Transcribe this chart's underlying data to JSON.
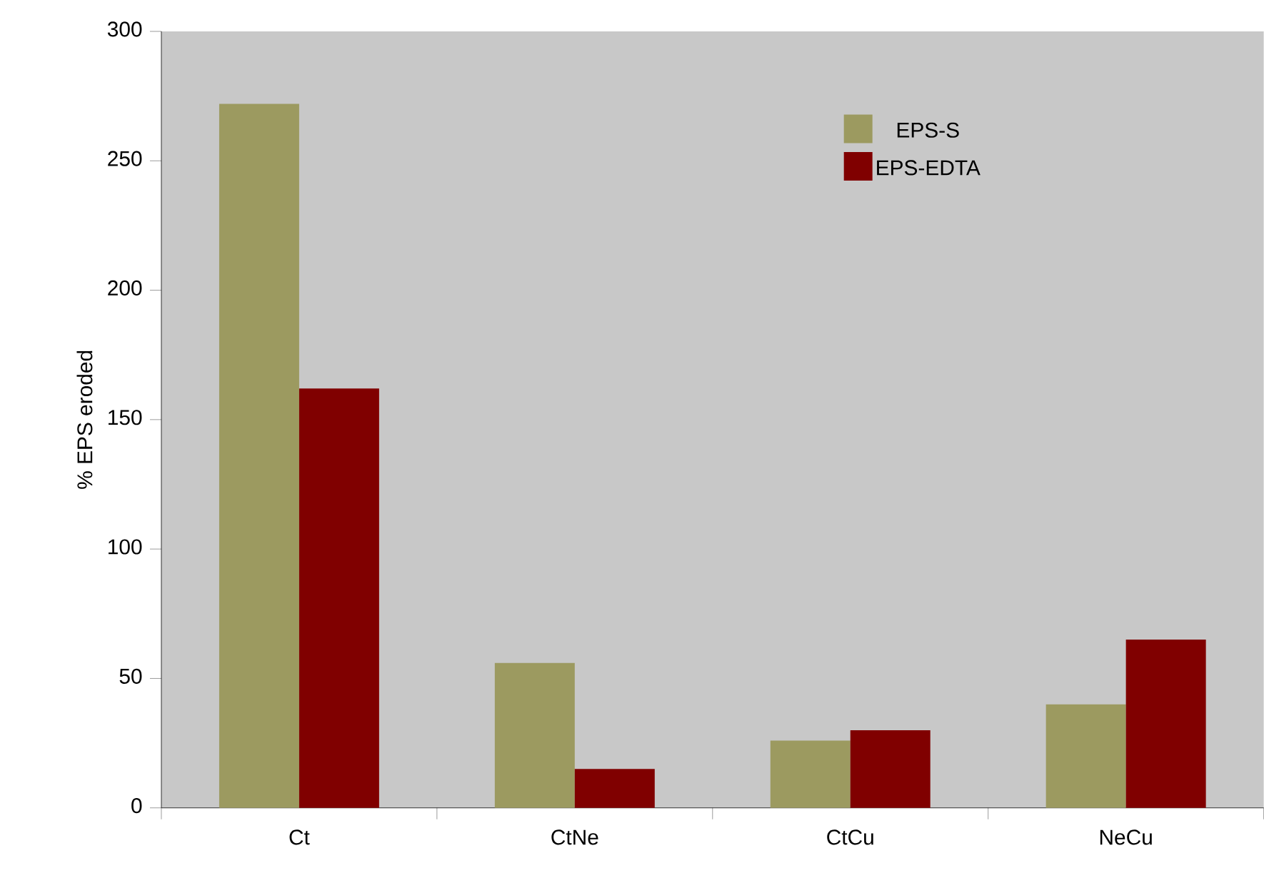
{
  "chart_data": {
    "type": "bar",
    "ylabel": "% EPS eroded",
    "categories": [
      "Ct",
      "CtNe",
      "CtCu",
      "NeCu"
    ],
    "series": [
      {
        "name": "EPS-S",
        "color": "#9c9a60",
        "values": [
          272,
          56,
          26,
          40
        ]
      },
      {
        "name": "EPS-EDTA",
        "color": "#800000",
        "values": [
          162,
          15,
          30,
          65
        ]
      }
    ],
    "ylim": [
      0,
      300
    ],
    "yticks": [
      0,
      50,
      100,
      150,
      200,
      250,
      300
    ],
    "grid": false,
    "legend": "top right"
  }
}
